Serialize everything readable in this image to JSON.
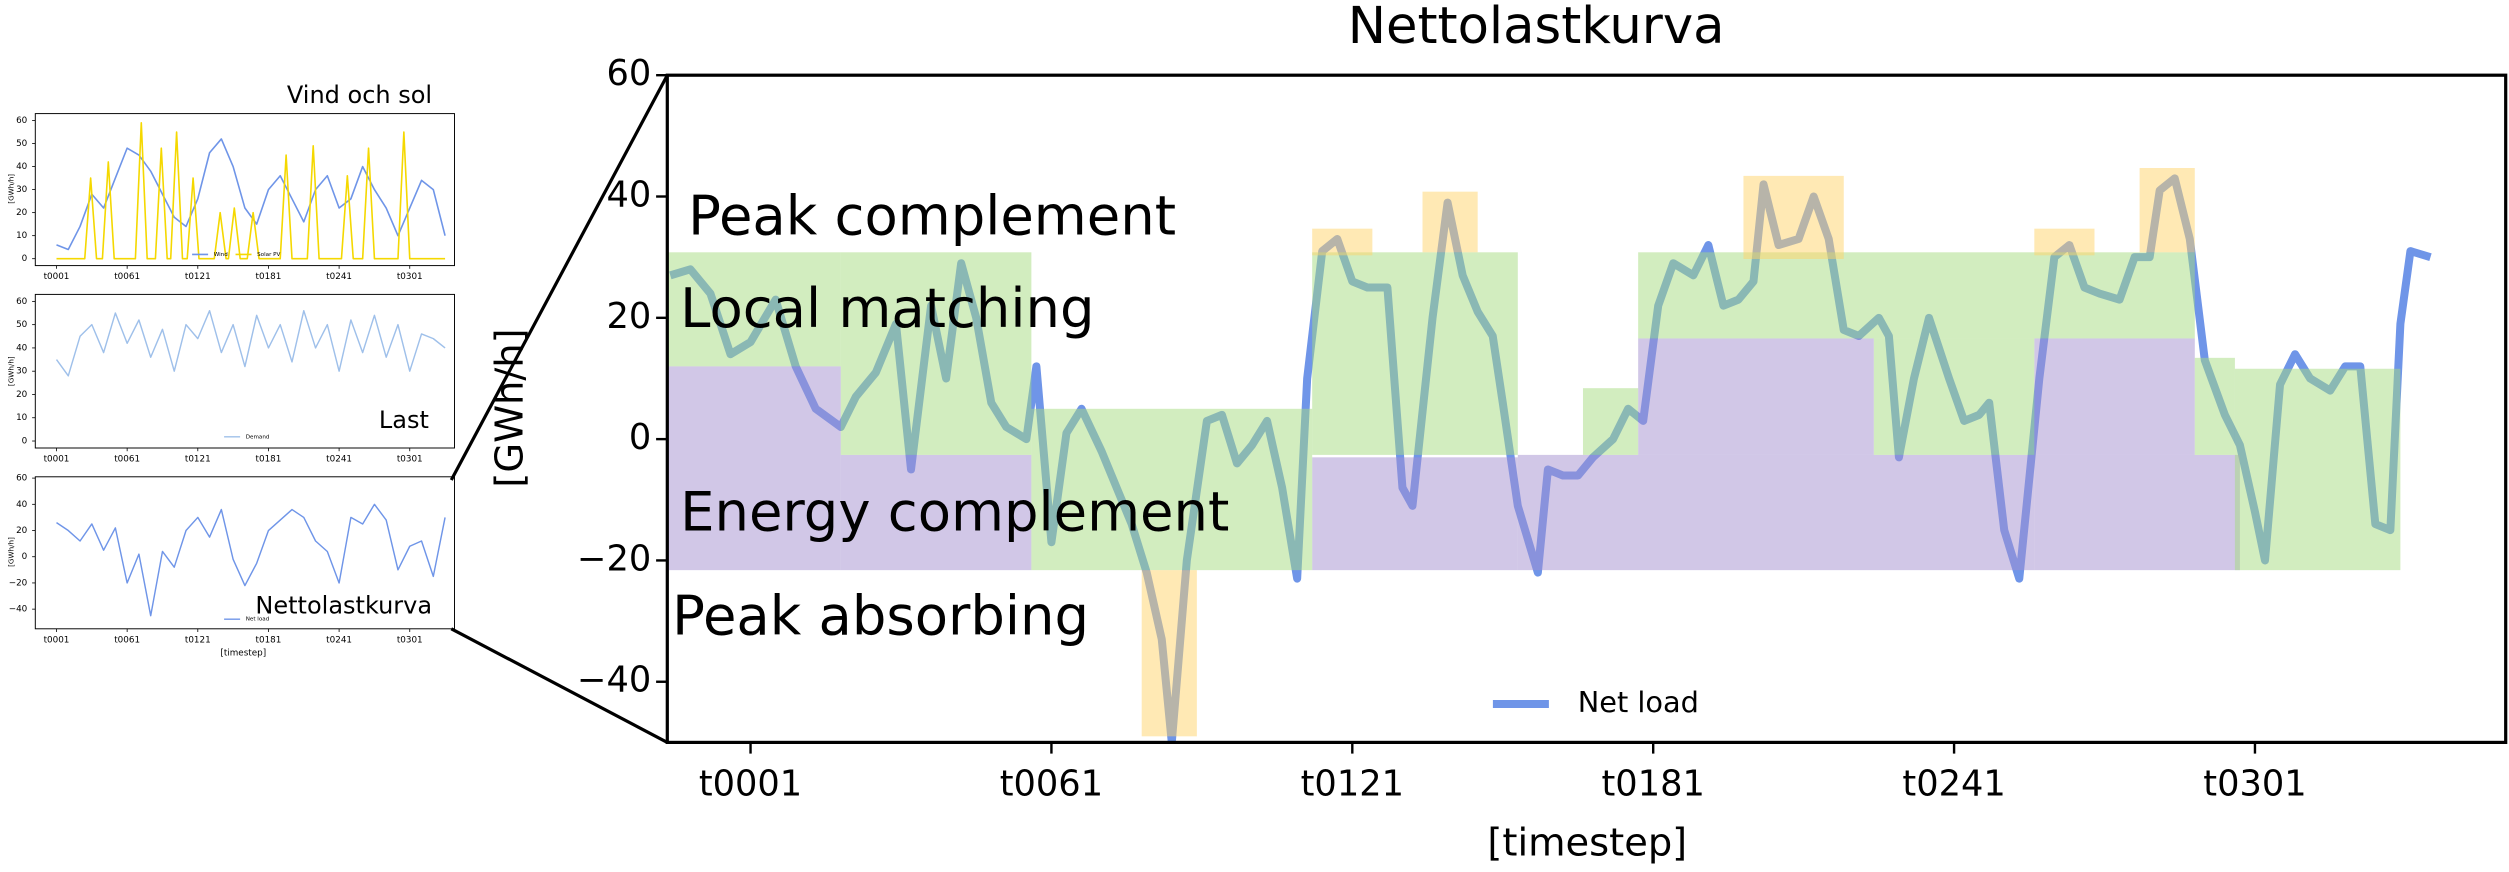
{
  "chart_data": [
    {
      "type": "line",
      "title": "Nettolastkurva",
      "xlabel": "[timestep]",
      "ylabel": "[GWh/h]",
      "xlim": [
        -15.6,
        351
      ],
      "ylim": [
        -50,
        60
      ],
      "xticks": [
        {
          "value": 1,
          "label": "t0001"
        },
        {
          "value": 61,
          "label": "t0061"
        },
        {
          "value": 121,
          "label": "t0121"
        },
        {
          "value": 181,
          "label": "t0181"
        },
        {
          "value": 241,
          "label": "t0241"
        },
        {
          "value": 301,
          "label": "t0301"
        }
      ],
      "yticks": [
        {
          "value": -40,
          "label": "−40"
        },
        {
          "value": -20,
          "label": "−20"
        },
        0,
        20,
        40,
        60
      ],
      "legend": "lower center",
      "series": [
        {
          "name": "Net load",
          "color": "#6f95e8",
          "x": [
            -15,
            -11,
            -7,
            -3,
            1,
            6,
            10,
            14,
            19,
            22,
            26,
            30,
            33,
            37,
            40,
            43,
            46,
            49,
            52,
            56,
            58,
            61,
            64,
            67,
            71,
            74,
            77,
            80,
            83,
            85,
            88,
            92,
            95,
            98,
            101,
            104,
            107,
            110,
            112,
            115,
            118,
            121,
            124,
            128,
            131,
            133,
            137,
            140,
            143,
            146,
            149,
            151,
            154,
            158,
            160,
            163,
            166,
            169,
            173,
            176,
            179,
            182,
            185,
            189,
            192,
            195,
            198,
            201,
            203,
            206,
            210,
            213,
            216,
            219,
            222,
            226,
            228,
            230,
            233,
            236,
            240,
            243,
            246,
            248,
            251,
            254,
            258,
            261,
            264,
            267,
            270,
            274,
            277,
            280,
            282,
            285,
            288,
            291,
            295,
            298,
            301,
            303,
            306,
            309,
            312,
            316,
            319,
            322,
            325,
            328,
            330,
            332,
            336
          ],
          "values": [
            27,
            28,
            24,
            14,
            16,
            23,
            12,
            5,
            2,
            7,
            11,
            19,
            -5,
            22,
            10,
            29,
            20,
            6,
            2,
            0,
            12,
            -17,
            1,
            5,
            -2,
            -8,
            -14,
            -22,
            -33,
            -50,
            -20,
            3,
            4,
            -4,
            -1,
            3,
            -8,
            -23,
            10,
            31,
            33,
            26,
            25,
            25,
            -8,
            -11,
            20,
            39,
            27,
            21,
            17,
            6,
            -11,
            -22,
            -5,
            -6,
            -6,
            -3,
            0,
            5,
            3,
            22,
            29,
            27,
            32,
            22,
            23,
            26,
            42,
            32,
            33,
            40,
            33,
            18,
            17,
            20,
            17,
            -3,
            10,
            20,
            10,
            3,
            4,
            6,
            -15,
            -23,
            10,
            30,
            32,
            25,
            24,
            23,
            30,
            30,
            41,
            43,
            33,
            13,
            4,
            -1,
            -12,
            -20,
            9,
            14,
            10,
            8,
            12,
            12,
            -14,
            -15,
            19,
            31,
            30
          ]
        }
      ],
      "regions": [
        {
          "color": "#a48fd0",
          "boxes": [
            [
              -15.6,
              19,
              -21.6,
              12
            ],
            [
              19,
              57,
              -21.6,
              -2.6
            ],
            [
              113,
              154,
              -21.6,
              -3
            ],
            [
              154,
              257,
              -21.6,
              -2.6
            ],
            [
              178,
              225,
              -2.6,
              16.6
            ],
            [
              257,
              289,
              -2.6,
              16.6
            ],
            [
              257,
              298,
              -21.6,
              -2.6
            ]
          ]
        },
        {
          "color": "#a6dc80",
          "boxes": [
            [
              -15.6,
              19,
              12,
              30.8
            ],
            [
              19,
              57,
              -2.6,
              30.8
            ],
            [
              57,
              113,
              -21.6,
              5
            ],
            [
              113,
              154,
              -2.6,
              30.8
            ],
            [
              167,
              178,
              -2.6,
              8.4
            ],
            [
              178,
              289,
              16.6,
              30.8
            ],
            [
              225,
              257,
              -2.6,
              16.6
            ],
            [
              289,
              297,
              -2.6,
              13.4
            ],
            [
              297,
              330,
              -21.6,
              11.6
            ]
          ]
        },
        {
          "color": "#ffd36a",
          "boxes": [
            [
              79,
              90,
              -49,
              -21.6
            ],
            [
              113,
              125,
              30.3,
              34.7
            ],
            [
              135,
              146,
              30.8,
              40.8
            ],
            [
              199,
              219,
              29.7,
              43.4
            ],
            [
              257,
              269,
              30.3,
              34.7
            ],
            [
              278,
              289,
              30.8,
              44.7
            ]
          ]
        }
      ],
      "annotations": [
        "Peak complement",
        "Local matching",
        "Energy complement",
        "Peak absorbing"
      ]
    },
    {
      "type": "line",
      "title": "Vind och sol",
      "ylabel": "[GWh/h]",
      "xlim": [
        -17,
        339
      ],
      "ylim": [
        -3,
        63
      ],
      "xticks": [
        {
          "value": 1,
          "label": "t0001"
        },
        {
          "value": 61,
          "label": "t0061"
        },
        {
          "value": 121,
          "label": "t0121"
        },
        {
          "value": 181,
          "label": "t0181"
        },
        {
          "value": 241,
          "label": "t0241"
        },
        {
          "value": 301,
          "label": "t0301"
        }
      ],
      "yticks": [
        0,
        10,
        20,
        30,
        40,
        50,
        60
      ],
      "legend": "lower center",
      "series": [
        {
          "name": "Wind",
          "color": "#6f95e8",
          "x": [
            1,
            11,
            21,
            31,
            41,
            51,
            61,
            71,
            81,
            91,
            101,
            111,
            121,
            131,
            141,
            151,
            161,
            171,
            181,
            191,
            201,
            211,
            221,
            231,
            241,
            251,
            261,
            271,
            281,
            291,
            301,
            311,
            321,
            331
          ],
          "values": [
            6,
            4,
            14,
            28,
            22,
            35,
            48,
            45,
            38,
            28,
            18,
            14,
            26,
            46,
            52,
            40,
            22,
            15,
            30,
            36,
            26,
            16,
            30,
            36,
            22,
            26,
            40,
            30,
            22,
            10,
            22,
            34,
            30,
            10
          ]
        },
        {
          "name": "Solar PV",
          "color": "#f5d800",
          "x": [
            1,
            25,
            30,
            35,
            40,
            45,
            50,
            68,
            73,
            78,
            85,
            90,
            95,
            98,
            103,
            108,
            112,
            117,
            122,
            135,
            140,
            145,
            147,
            152,
            157,
            163,
            168,
            173,
            191,
            196,
            201,
            214,
            219,
            224,
            243,
            248,
            253,
            261,
            266,
            271,
            291,
            296,
            301,
            331
          ],
          "values": [
            0,
            0,
            35,
            0,
            0,
            42,
            0,
            0,
            59,
            0,
            0,
            48,
            0,
            0,
            55,
            0,
            0,
            35,
            0,
            0,
            20,
            0,
            0,
            22,
            0,
            0,
            20,
            0,
            0,
            45,
            0,
            0,
            49,
            0,
            0,
            36,
            0,
            0,
            48,
            0,
            0,
            55,
            0,
            0
          ]
        }
      ]
    },
    {
      "type": "line",
      "title": "Last",
      "ylabel": "[GWh/h]",
      "xlim": [
        -17,
        339
      ],
      "ylim": [
        -3,
        63
      ],
      "xticks": [
        {
          "value": 1,
          "label": "t0001"
        },
        {
          "value": 61,
          "label": "t0061"
        },
        {
          "value": 121,
          "label": "t0121"
        },
        {
          "value": 181,
          "label": "t0181"
        },
        {
          "value": 241,
          "label": "t0241"
        },
        {
          "value": 301,
          "label": "t0301"
        }
      ],
      "yticks": [
        0,
        10,
        20,
        30,
        40,
        50,
        60
      ],
      "legend": "lower center",
      "series": [
        {
          "name": "Demand",
          "color": "#9fc0ea",
          "x": [
            1,
            11,
            21,
            31,
            41,
            51,
            61,
            71,
            81,
            91,
            101,
            111,
            121,
            131,
            141,
            151,
            161,
            171,
            181,
            191,
            201,
            211,
            221,
            231,
            241,
            251,
            261,
            271,
            281,
            291,
            301,
            311,
            321,
            331
          ],
          "values": [
            35,
            28,
            45,
            50,
            38,
            55,
            42,
            52,
            36,
            48,
            30,
            50,
            44,
            56,
            38,
            50,
            32,
            54,
            40,
            50,
            34,
            56,
            40,
            50,
            30,
            52,
            38,
            54,
            36,
            50,
            30,
            46,
            44,
            40
          ]
        }
      ]
    },
    {
      "type": "line",
      "title": "Nettolastkurva",
      "xlabel": "[timestep]",
      "ylabel": "[GWh/h]",
      "xlim": [
        -17,
        339
      ],
      "ylim": [
        -55,
        61
      ],
      "xticks": [
        {
          "value": 1,
          "label": "t0001"
        },
        {
          "value": 61,
          "label": "t0061"
        },
        {
          "value": 121,
          "label": "t0121"
        },
        {
          "value": 181,
          "label": "t0181"
        },
        {
          "value": 241,
          "label": "t0241"
        },
        {
          "value": 301,
          "label": "t0301"
        }
      ],
      "yticks": [
        {
          "value": -40,
          "label": "−40"
        },
        {
          "value": -20,
          "label": "−20"
        },
        0,
        20,
        40,
        60
      ],
      "legend": "lower center",
      "series": [
        {
          "name": "Net load",
          "color": "#6f95e8",
          "x": [
            1,
            11,
            21,
            31,
            41,
            51,
            61,
            71,
            81,
            91,
            101,
            111,
            121,
            131,
            141,
            151,
            161,
            171,
            181,
            191,
            201,
            211,
            221,
            231,
            241,
            251,
            261,
            271,
            281,
            291,
            301,
            311,
            321,
            331
          ],
          "values": [
            26,
            20,
            12,
            25,
            5,
            22,
            -20,
            2,
            -45,
            4,
            -8,
            20,
            30,
            15,
            36,
            -2,
            -22,
            -5,
            20,
            28,
            36,
            30,
            12,
            4,
            -20,
            30,
            25,
            40,
            28,
            -10,
            8,
            12,
            -15,
            30
          ]
        }
      ]
    }
  ]
}
